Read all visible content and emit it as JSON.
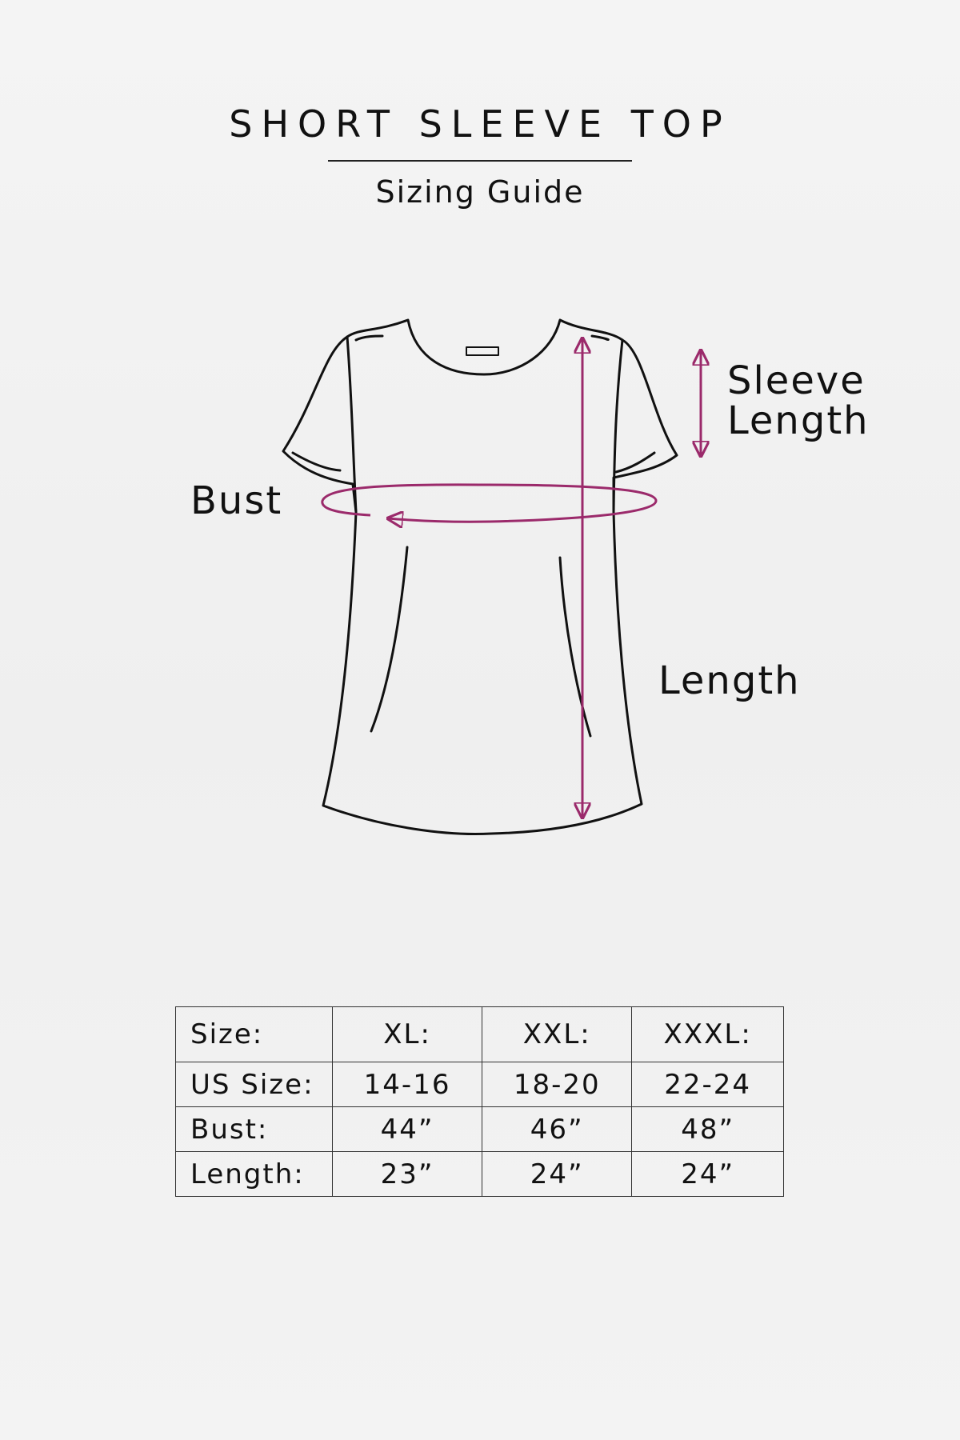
{
  "header": {
    "title": "SHORT SLEEVE TOP",
    "subtitle": "Sizing Guide"
  },
  "diagram": {
    "labels": {
      "bust": "Bust",
      "sleeve_line1": "Sleeve",
      "sleeve_line2": "Length",
      "length": "Length"
    },
    "accent_color": "#9b2a6b"
  },
  "table": {
    "header": [
      "Size:",
      "XL:",
      "XXL:",
      "XXXL:"
    ],
    "rows": [
      [
        "US Size:",
        "14-16",
        "18-20",
        "22-24"
      ],
      [
        "Bust:",
        "44”",
        "46”",
        "48”"
      ],
      [
        "Length:",
        "23”",
        "24”",
        "24”"
      ]
    ]
  }
}
